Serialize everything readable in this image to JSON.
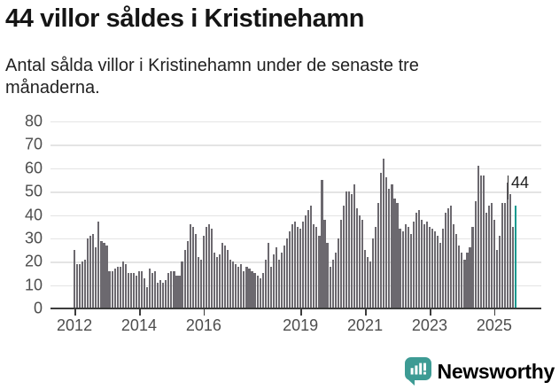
{
  "title": "44 villor såldes i Kristinehamn",
  "subtitle": "Antal sålda villor i Kristinehamn under de senaste tre månaderna.",
  "annotation": {
    "label": "44"
  },
  "logo": {
    "text": "Newsworthy",
    "color": "#3D9B94",
    "icon": "newsworthy-speech-bubble-bar-chart-icon"
  },
  "colors": {
    "bar": "#6C696F",
    "highlight": "#13998F",
    "grid": "#e4e4e4",
    "axis": "#3d3d3d",
    "tick_text": "#4d4d4d"
  },
  "chart_data": {
    "type": "bar",
    "title": "44 villor såldes i Kristinehamn",
    "xlabel": "",
    "ylabel": "",
    "unit": "antal sålda villor (rullande tre månader)",
    "frequency": "monthly",
    "x_start": "2012-01",
    "x_end": "2025-09",
    "ylim": [
      0,
      80
    ],
    "yticks": [
      0,
      10,
      20,
      30,
      40,
      50,
      60,
      70,
      80
    ],
    "grid": true,
    "legend": false,
    "x_ticks": [
      {
        "label": "2012",
        "month_index": 0
      },
      {
        "label": "2014",
        "month_index": 24
      },
      {
        "label": "2016",
        "month_index": 48
      },
      {
        "label": "2019",
        "month_index": 84
      },
      {
        "label": "2021",
        "month_index": 108
      },
      {
        "label": "2023",
        "month_index": 132
      },
      {
        "label": "2025",
        "month_index": 156
      }
    ],
    "values": [
      25,
      19,
      19,
      20,
      21,
      30,
      31,
      32,
      26,
      37,
      29,
      28,
      27,
      16,
      16,
      17,
      18,
      18,
      20,
      19,
      15,
      15,
      15,
      14,
      16,
      16,
      13,
      9,
      17,
      15,
      16,
      11,
      12,
      11,
      12,
      15,
      16,
      16,
      14,
      14,
      20,
      25,
      29,
      36,
      35,
      32,
      22,
      21,
      31,
      35,
      36,
      34,
      24,
      22,
      23,
      28,
      27,
      25,
      21,
      20,
      19,
      18,
      19,
      16,
      18,
      17,
      16,
      15,
      14,
      13,
      15,
      21,
      28,
      18,
      23,
      26,
      21,
      24,
      27,
      30,
      33,
      36,
      37,
      35,
      34,
      37,
      40,
      42,
      44,
      36,
      35,
      31,
      55,
      38,
      28,
      18,
      21,
      24,
      30,
      38,
      44,
      50,
      50,
      49,
      53,
      43,
      40,
      38,
      25,
      22,
      20,
      30,
      35,
      45,
      58,
      64,
      56,
      51,
      53,
      47,
      45,
      34,
      33,
      36,
      35,
      32,
      37,
      41,
      42,
      38,
      36,
      37,
      35,
      34,
      33,
      31,
      28,
      34,
      41,
      43,
      44,
      36,
      32,
      27,
      24,
      21,
      24,
      26,
      35,
      46,
      61,
      57,
      57,
      41,
      44,
      45,
      38,
      25,
      31,
      45,
      45,
      54,
      49,
      35,
      44
    ],
    "highlight": {
      "index": 164,
      "value": 44,
      "label": "44"
    }
  }
}
